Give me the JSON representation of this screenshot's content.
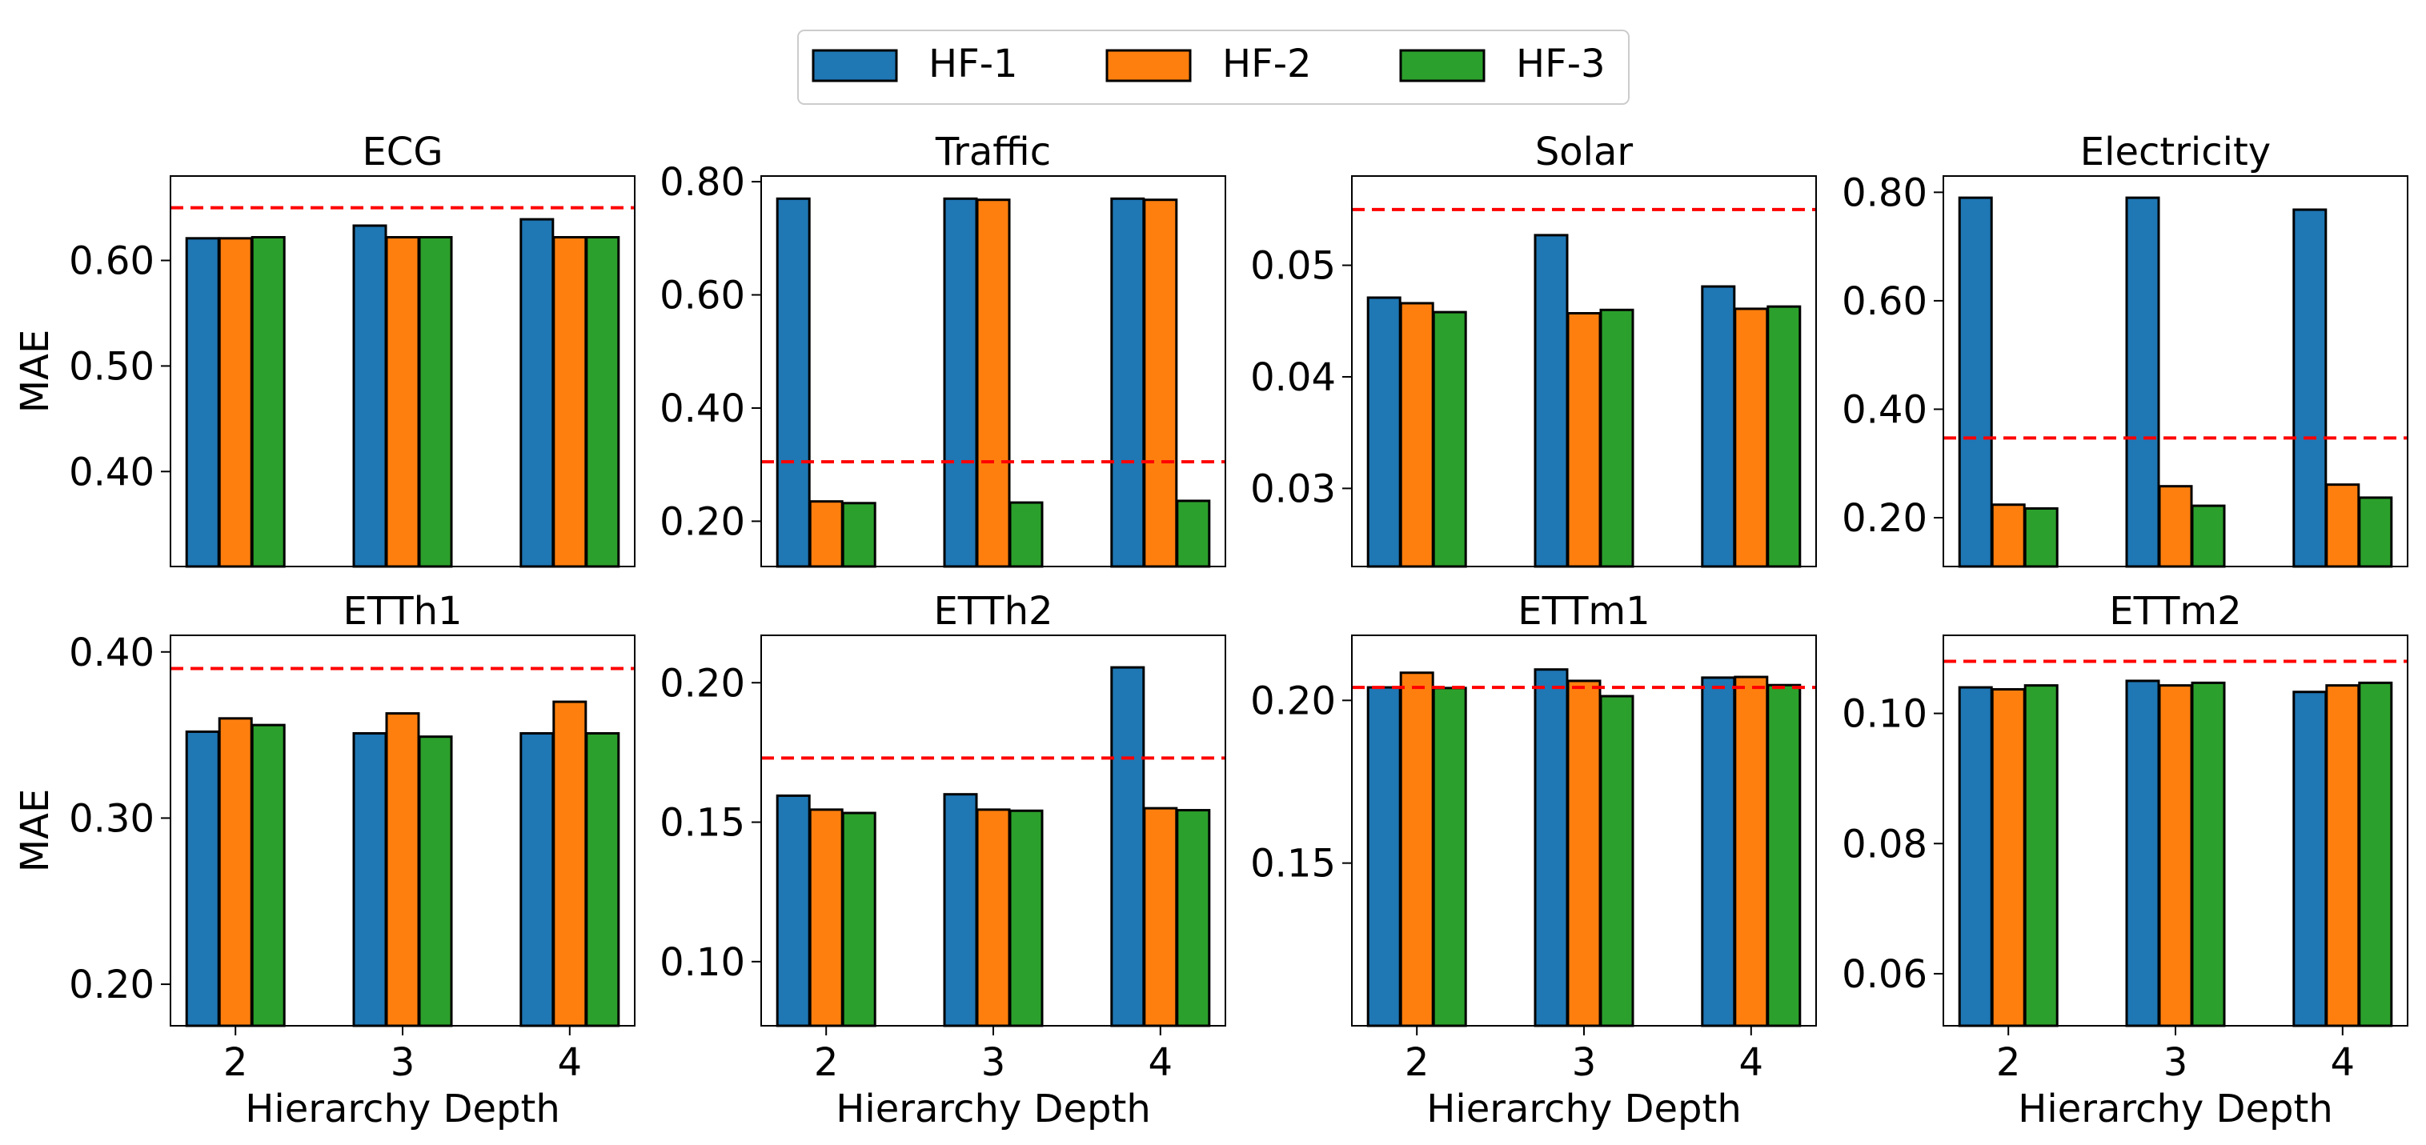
{
  "legend": {
    "placement": "top-center",
    "items": [
      {
        "label": "HF-1",
        "color": "#1f77b4"
      },
      {
        "label": "HF-2",
        "color": "#ff7f0e"
      },
      {
        "label": "HF-3",
        "color": "#2ca02c"
      }
    ]
  },
  "colors": {
    "bar_edge": "#000000",
    "reference_line": "#ff0000"
  },
  "y_axis_label": "MAE",
  "x_axis_label": "Hierarchy Depth",
  "chart_data": [
    {
      "type": "bar",
      "title": "ECG",
      "xlabel": "",
      "ylabel": "MAE",
      "categories": [
        "2",
        "3",
        "4"
      ],
      "ylim": [
        0.31,
        0.68
      ],
      "yticks": [
        0.4,
        0.5,
        0.6
      ],
      "ytick_labels": [
        "0.40",
        "0.50",
        "0.60"
      ],
      "reference_line": 0.65,
      "series": [
        {
          "name": "HF-1",
          "values": [
            0.621,
            0.633,
            0.639
          ]
        },
        {
          "name": "HF-2",
          "values": [
            0.621,
            0.622,
            0.622
          ]
        },
        {
          "name": "HF-3",
          "values": [
            0.622,
            0.622,
            0.622
          ]
        }
      ]
    },
    {
      "type": "bar",
      "title": "Traffic",
      "xlabel": "",
      "ylabel": "",
      "categories": [
        "2",
        "3",
        "4"
      ],
      "ylim": [
        0.12,
        0.81
      ],
      "yticks": [
        0.2,
        0.4,
        0.6,
        0.8
      ],
      "ytick_labels": [
        "0.20",
        "0.40",
        "0.60",
        "0.80"
      ],
      "reference_line": 0.305,
      "series": [
        {
          "name": "HF-1",
          "values": [
            0.77,
            0.77,
            0.77
          ]
        },
        {
          "name": "HF-2",
          "values": [
            0.235,
            0.768,
            0.768
          ]
        },
        {
          "name": "HF-3",
          "values": [
            0.232,
            0.233,
            0.236
          ]
        }
      ]
    },
    {
      "type": "bar",
      "title": "Solar",
      "xlabel": "",
      "ylabel": "",
      "categories": [
        "2",
        "3",
        "4"
      ],
      "ylim": [
        0.023,
        0.058
      ],
      "yticks": [
        0.03,
        0.04,
        0.05
      ],
      "ytick_labels": [
        "0.03",
        "0.04",
        "0.05"
      ],
      "reference_line": 0.055,
      "series": [
        {
          "name": "HF-1",
          "values": [
            0.0471,
            0.0527,
            0.0481
          ]
        },
        {
          "name": "HF-2",
          "values": [
            0.0466,
            0.0457,
            0.0461
          ]
        },
        {
          "name": "HF-3",
          "values": [
            0.0458,
            0.046,
            0.0463
          ]
        }
      ]
    },
    {
      "type": "bar",
      "title": "Electricity",
      "xlabel": "",
      "ylabel": "",
      "categories": [
        "2",
        "3",
        "4"
      ],
      "ylim": [
        0.11,
        0.83
      ],
      "yticks": [
        0.2,
        0.4,
        0.6,
        0.8
      ],
      "ytick_labels": [
        "0.20",
        "0.40",
        "0.60",
        "0.80"
      ],
      "reference_line": 0.347,
      "series": [
        {
          "name": "HF-1",
          "values": [
            0.79,
            0.79,
            0.768
          ]
        },
        {
          "name": "HF-2",
          "values": [
            0.224,
            0.258,
            0.261
          ]
        },
        {
          "name": "HF-3",
          "values": [
            0.217,
            0.222,
            0.237
          ]
        }
      ]
    },
    {
      "type": "bar",
      "title": "ETTh1",
      "xlabel": "Hierarchy Depth",
      "ylabel": "MAE",
      "categories": [
        "2",
        "3",
        "4"
      ],
      "ylim": [
        0.175,
        0.41
      ],
      "yticks": [
        0.2,
        0.3,
        0.4
      ],
      "ytick_labels": [
        "0.20",
        "0.30",
        "0.40"
      ],
      "reference_line": 0.39,
      "series": [
        {
          "name": "HF-1",
          "values": [
            0.352,
            0.351,
            0.351
          ]
        },
        {
          "name": "HF-2",
          "values": [
            0.36,
            0.363,
            0.37
          ]
        },
        {
          "name": "HF-3",
          "values": [
            0.356,
            0.349,
            0.351
          ]
        }
      ]
    },
    {
      "type": "bar",
      "title": "ETTh2",
      "xlabel": "Hierarchy Depth",
      "ylabel": "",
      "categories": [
        "2",
        "3",
        "4"
      ],
      "ylim": [
        0.077,
        0.217
      ],
      "yticks": [
        0.1,
        0.15,
        0.2
      ],
      "ytick_labels": [
        "0.10",
        "0.15",
        "0.20"
      ],
      "reference_line": 0.173,
      "series": [
        {
          "name": "HF-1",
          "values": [
            0.1595,
            0.16,
            0.2055
          ]
        },
        {
          "name": "HF-2",
          "values": [
            0.1545,
            0.1545,
            0.155
          ]
        },
        {
          "name": "HF-3",
          "values": [
            0.1533,
            0.1541,
            0.1543
          ]
        }
      ]
    },
    {
      "type": "bar",
      "title": "ETTm1",
      "xlabel": "Hierarchy Depth",
      "ylabel": "",
      "categories": [
        "2",
        "3",
        "4"
      ],
      "ylim": [
        0.1,
        0.22
      ],
      "yticks": [
        0.15,
        0.2
      ],
      "ytick_labels": [
        "0.15",
        "0.20"
      ],
      "reference_line": 0.204,
      "series": [
        {
          "name": "HF-1",
          "values": [
            0.204,
            0.2095,
            0.207
          ]
        },
        {
          "name": "HF-2",
          "values": [
            0.2085,
            0.206,
            0.2072
          ]
        },
        {
          "name": "HF-3",
          "values": [
            0.2038,
            0.2013,
            0.2047
          ]
        }
      ]
    },
    {
      "type": "bar",
      "title": "ETTm2",
      "xlabel": "Hierarchy Depth",
      "ylabel": "",
      "categories": [
        "2",
        "3",
        "4"
      ],
      "ylim": [
        0.052,
        0.112
      ],
      "yticks": [
        0.06,
        0.08,
        0.1
      ],
      "ytick_labels": [
        "0.06",
        "0.08",
        "0.10"
      ],
      "reference_line": 0.108,
      "series": [
        {
          "name": "HF-1",
          "values": [
            0.104,
            0.105,
            0.1033
          ]
        },
        {
          "name": "HF-2",
          "values": [
            0.1037,
            0.1043,
            0.1043
          ]
        },
        {
          "name": "HF-3",
          "values": [
            0.1043,
            0.1047,
            0.1047
          ]
        }
      ]
    }
  ]
}
